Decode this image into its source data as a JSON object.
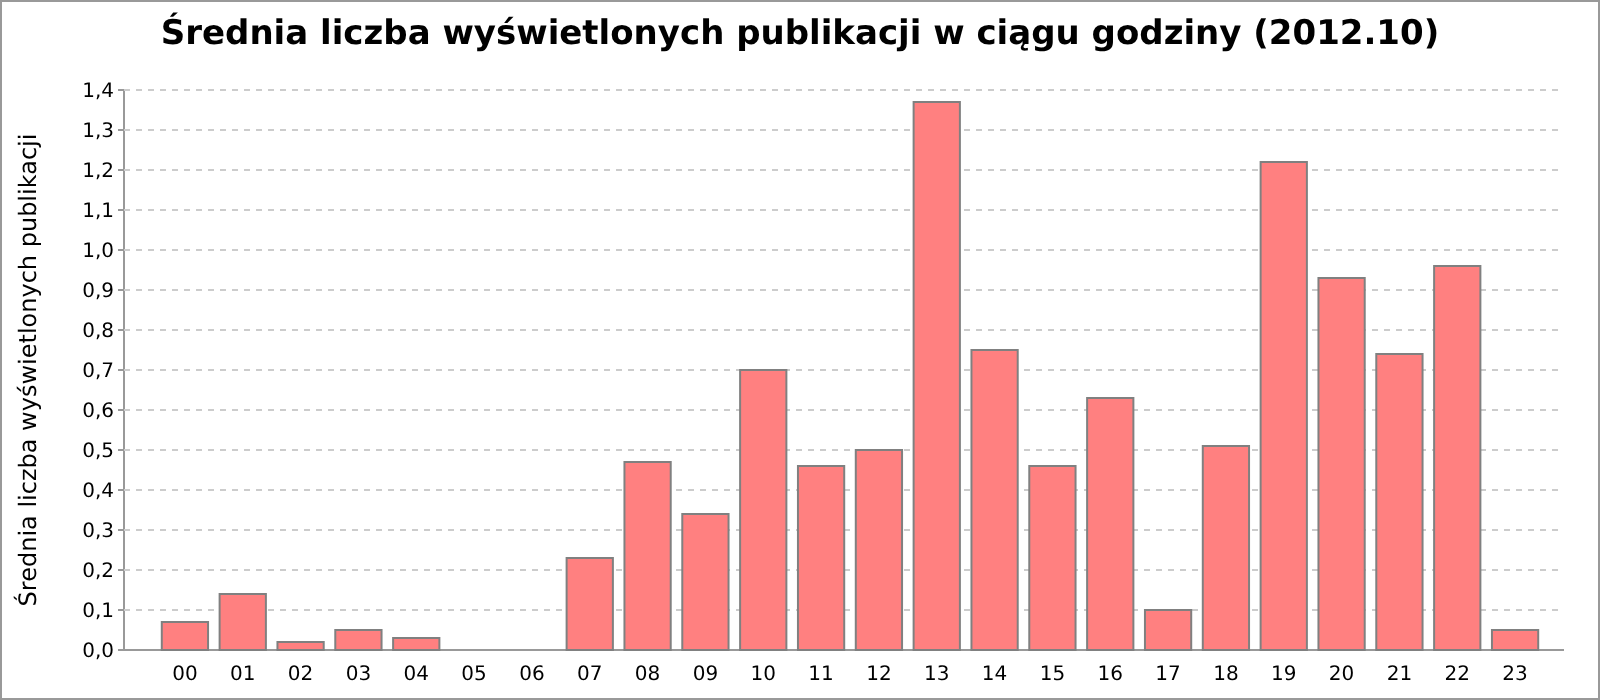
{
  "chart_data": {
    "type": "bar",
    "title": "Średnia liczba wyświetlonych publikacji w ciągu godziny (2012.10)",
    "ylabel": "Średnia liczba wyświetlonych publikacji",
    "categories": [
      "00",
      "01",
      "02",
      "03",
      "04",
      "05",
      "06",
      "07",
      "08",
      "09",
      "10",
      "11",
      "12",
      "13",
      "14",
      "15",
      "16",
      "17",
      "18",
      "19",
      "20",
      "21",
      "22",
      "23"
    ],
    "values": [
      0.07,
      0.14,
      0.02,
      0.05,
      0.03,
      0,
      0,
      0.23,
      0.47,
      0.34,
      0.7,
      0.46,
      0.5,
      1.37,
      0.75,
      0.46,
      0.63,
      0.1,
      0.51,
      1.22,
      0.93,
      0.74,
      0.96,
      0.05
    ],
    "color": "#ff8080",
    "ylim": [
      0,
      1.4
    ],
    "yticks": [
      {
        "value": 0,
        "label": "0,0"
      },
      {
        "value": 0.1,
        "label": "0,1"
      },
      {
        "value": 0.2,
        "label": "0,2"
      },
      {
        "value": 0.3,
        "label": "0,3"
      },
      {
        "value": 0.4,
        "label": "0,4"
      },
      {
        "value": 0.5,
        "label": "0,5"
      },
      {
        "value": 0.6,
        "label": "0,6"
      },
      {
        "value": 0.7,
        "label": "0,7"
      },
      {
        "value": 0.8,
        "label": "0,8"
      },
      {
        "value": 0.9,
        "label": "0,9"
      },
      {
        "value": 1,
        "label": "1,0"
      },
      {
        "value": 1.1,
        "label": "1,1"
      },
      {
        "value": 1.2,
        "label": "1,2"
      },
      {
        "value": 1.3,
        "label": "1,3"
      },
      {
        "value": 1.4,
        "label": "1,4"
      }
    ],
    "grid": "y"
  }
}
